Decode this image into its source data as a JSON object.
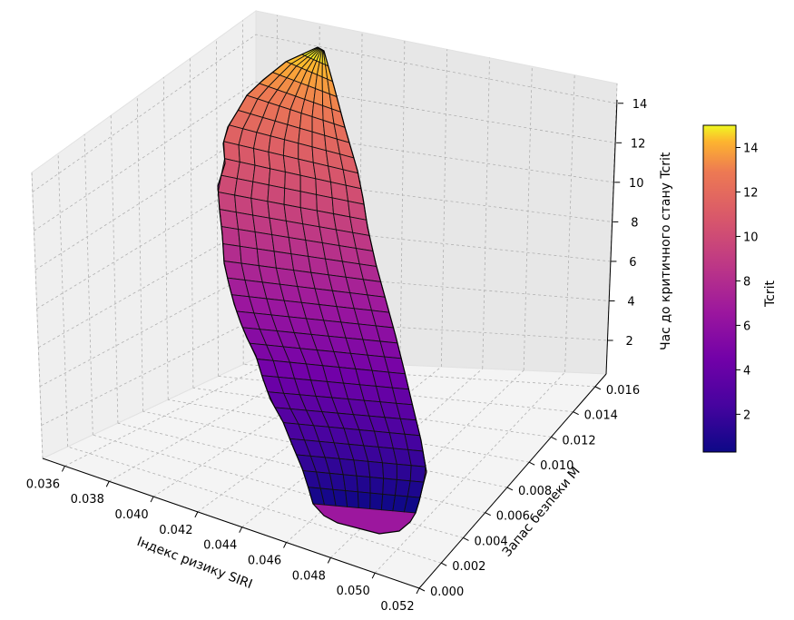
{
  "chart_data": {
    "type": "surface3d",
    "title": "",
    "colormap": "plasma",
    "x_axis": {
      "label": "Індекс ризику SIRI",
      "range": [
        0.035,
        0.052
      ],
      "ticks": [
        "0.036",
        "0.038",
        "0.040",
        "0.042",
        "0.044",
        "0.046",
        "0.048",
        "0.050",
        "0.052"
      ]
    },
    "y_axis": {
      "label": "Запас безпеки M",
      "range": [
        0.0,
        0.017
      ],
      "ticks": [
        "0.000",
        "0.002",
        "0.004",
        "0.006",
        "0.008",
        "0.010",
        "0.012",
        "0.014",
        "0.016"
      ]
    },
    "z_axis": {
      "label": "Час до критичного стану Tcrit",
      "range": [
        0.3,
        15
      ],
      "ticks": [
        "2",
        "4",
        "6",
        "8",
        "10",
        "12",
        "14"
      ]
    },
    "colorbar": {
      "label": "Tcrit",
      "range": [
        0.3,
        15
      ],
      "ticks": [
        "2",
        "4",
        "6",
        "8",
        "10",
        "12",
        "14"
      ]
    },
    "surface": {
      "z_bottom": 0.3,
      "z_top": 15.0,
      "rows": 30,
      "cols": 9
    },
    "grid": true
  }
}
